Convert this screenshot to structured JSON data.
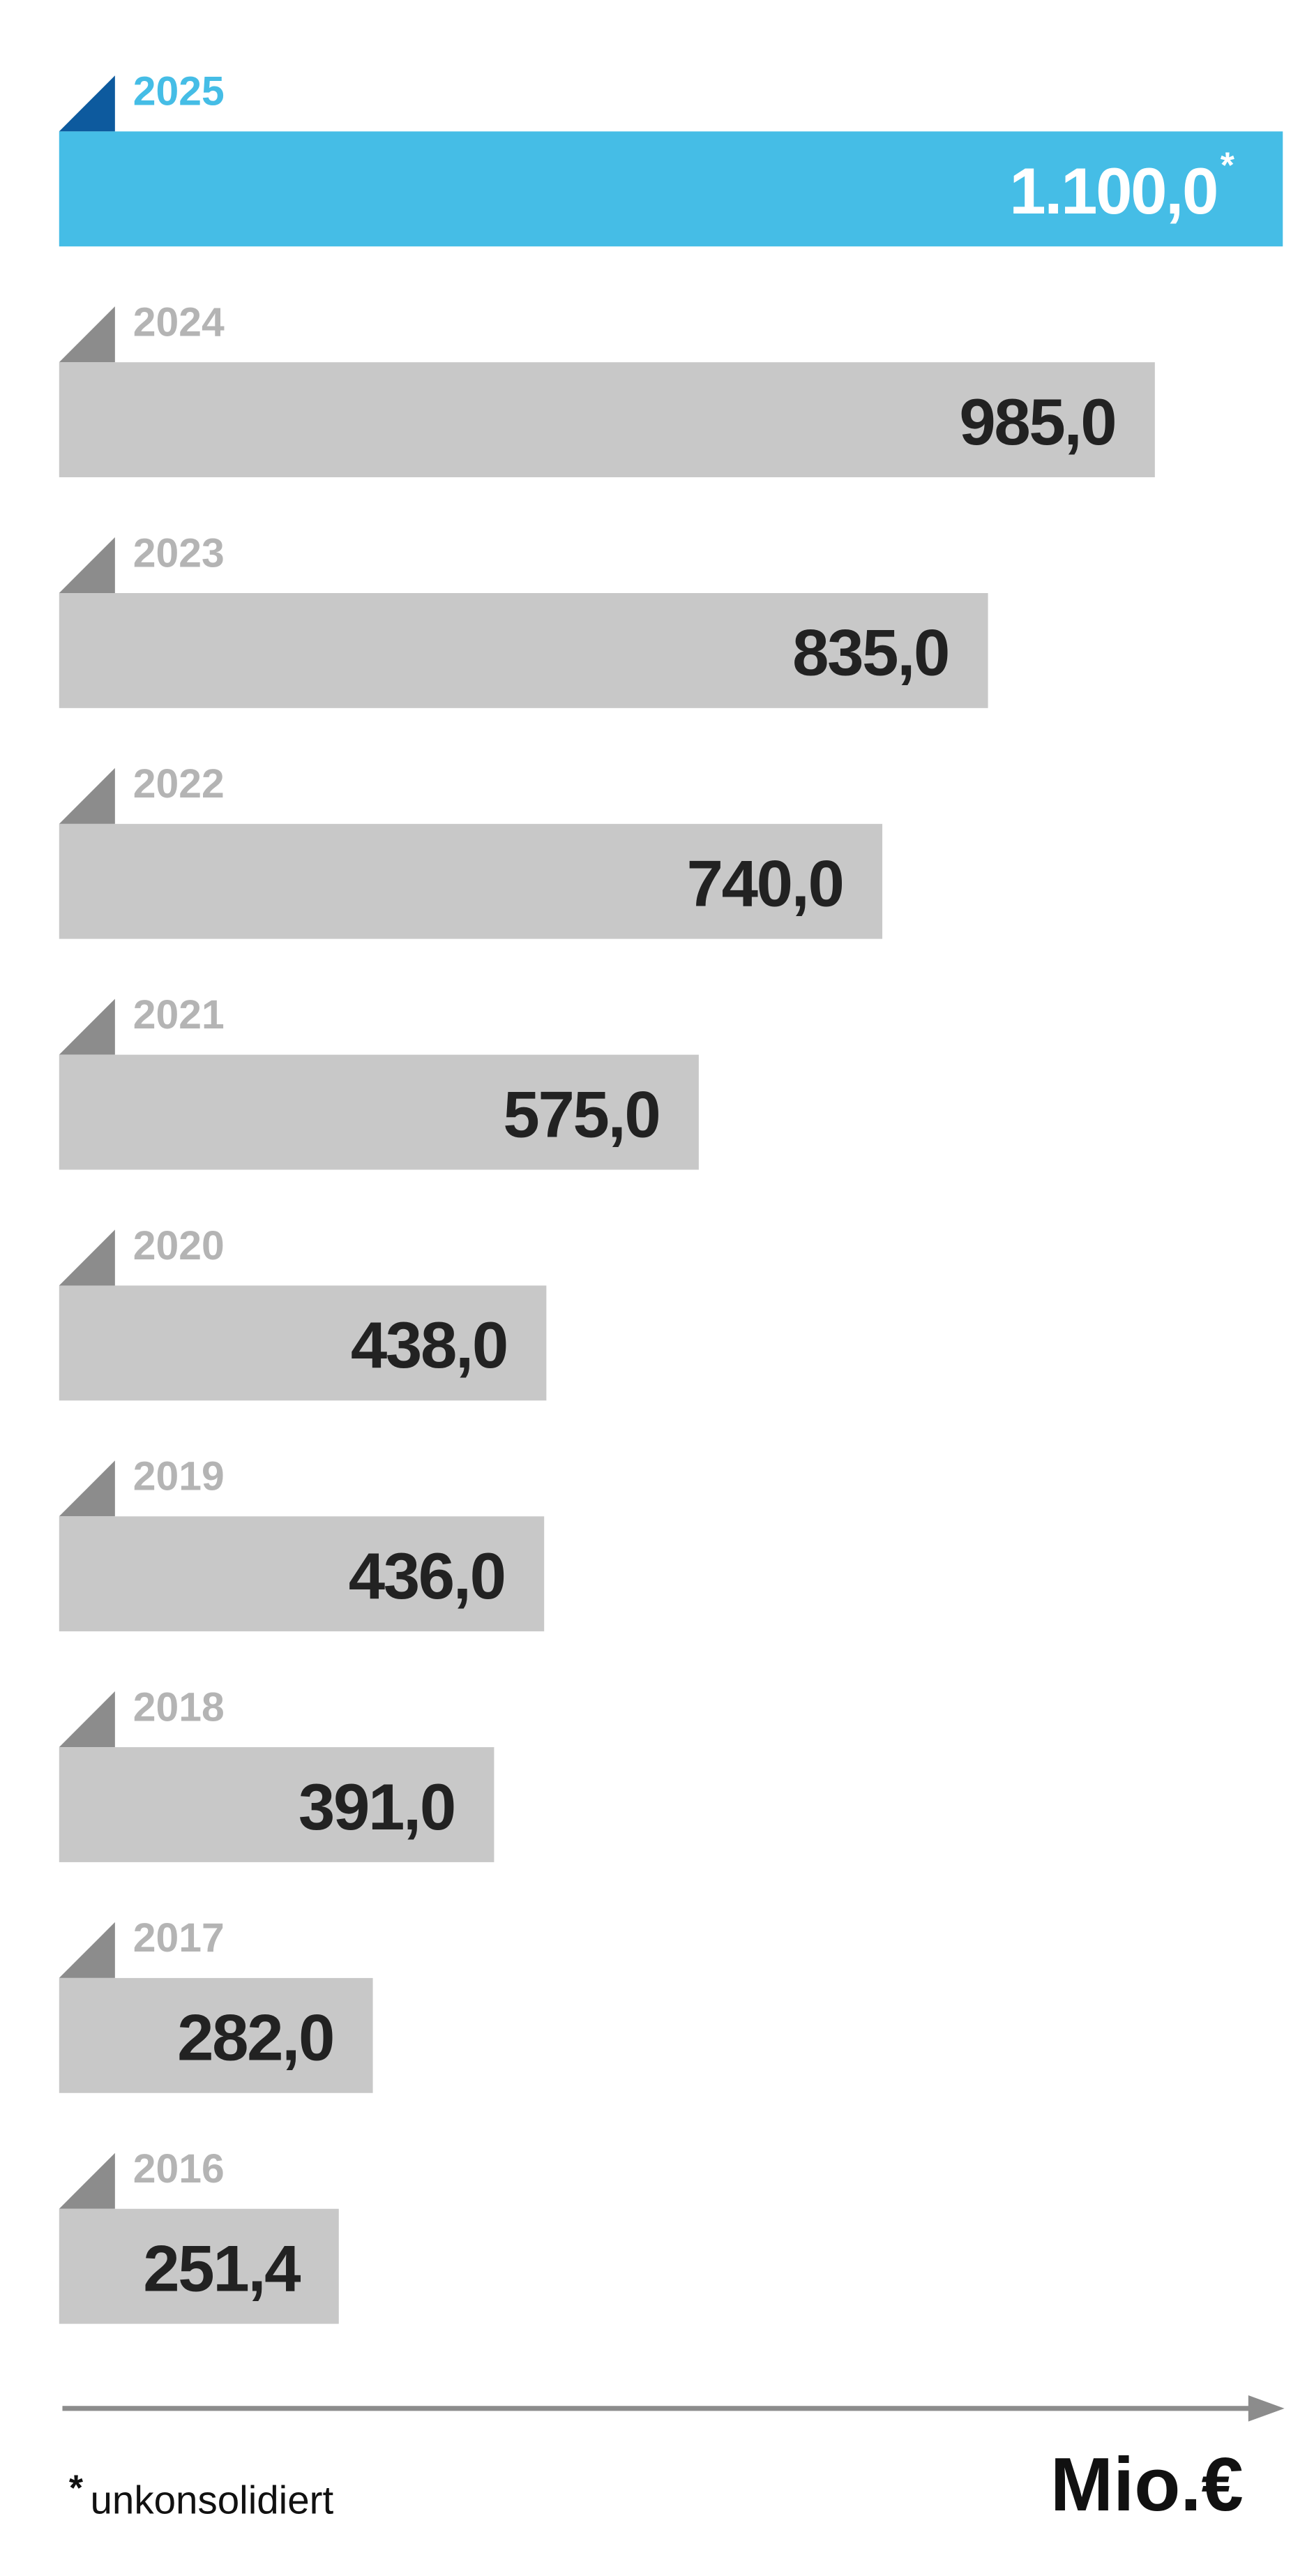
{
  "chart_data": {
    "type": "bar",
    "orientation": "horizontal",
    "categories": [
      "2025",
      "2024",
      "2023",
      "2022",
      "2021",
      "2020",
      "2019",
      "2018",
      "2017",
      "2016"
    ],
    "values": [
      1100,
      985,
      835,
      740,
      575,
      438,
      436,
      391,
      282,
      251.4
    ],
    "value_labels": [
      "1.100,0",
      "985,0",
      "835,0",
      "740,0",
      "575,0",
      "438,0",
      "436,0",
      "391,0",
      "282,0",
      "251,4"
    ],
    "value_notes": [
      "*",
      null,
      null,
      null,
      null,
      null,
      null,
      null,
      null,
      null
    ],
    "bar_colors": [
      "#45bde6",
      "#c8c8c8",
      "#c8c8c8",
      "#c8c8c8",
      "#c8c8c8",
      "#c8c8c8",
      "#c8c8c8",
      "#c8c8c8",
      "#c8c8c8",
      "#c8c8c8"
    ],
    "corner_colors": [
      "#0d5a9e",
      "#8c8c8c",
      "#8c8c8c",
      "#8c8c8c",
      "#8c8c8c",
      "#8c8c8c",
      "#8c8c8c",
      "#8c8c8c",
      "#8c8c8c",
      "#8c8c8c"
    ],
    "category_label_colors": [
      "#45bde6",
      "#b4b4b4",
      "#b4b4b4",
      "#b4b4b4",
      "#b4b4b4",
      "#b4b4b4",
      "#b4b4b4",
      "#b4b4b4",
      "#b4b4b4",
      "#b4b4b4"
    ],
    "value_label_colors": [
      "#ffffff",
      "#222222",
      "#222222",
      "#222222",
      "#222222",
      "#222222",
      "#222222",
      "#222222",
      "#222222",
      "#222222"
    ],
    "x_label": "Mio.€",
    "footnote_marker": "*",
    "footnote": "unkonsolidiert"
  }
}
